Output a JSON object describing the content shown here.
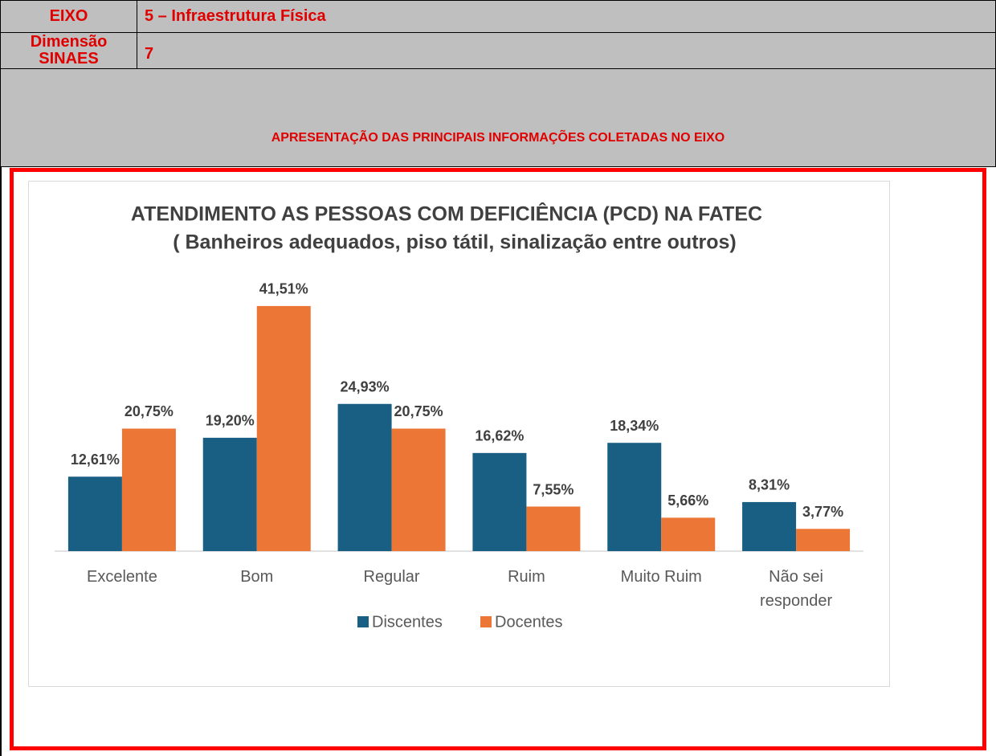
{
  "header": {
    "rows": [
      [
        "EIXO",
        "5 – Infraestrutura Física"
      ],
      [
        "Dimensão SINAES",
        "7"
      ]
    ],
    "section_title": "APRESENTAÇÃO DAS PRINCIPAIS INFORMAÇÕES COLETADAS NO EIXO"
  },
  "chart_data": {
    "type": "bar",
    "title": "ATENDIMENTO AS PESSOAS COM DEFICIÊNCIA (PCD) NA FATEC",
    "subtitle": "( Banheiros adequados, piso tátil, sinalização entre outros)",
    "categories": [
      "Excelente",
      "Bom",
      "Regular",
      "Ruim",
      "Muito Ruim",
      "Não sei responder"
    ],
    "series": [
      {
        "name": "Discentes",
        "color": "#195e83",
        "values": [
          12.61,
          19.2,
          24.93,
          16.62,
          18.34,
          8.31
        ],
        "value_labels": [
          "12,61%",
          "19,20%",
          "24,93%",
          "16,62%",
          "18,34%",
          "8,31%"
        ]
      },
      {
        "name": "Docentes",
        "color": "#ec7636",
        "values": [
          20.75,
          41.51,
          20.75,
          7.55,
          5.66,
          3.77
        ],
        "value_labels": [
          "20,75%",
          "41,51%",
          "20,75%",
          "7,55%",
          "5,66%",
          "3,77%"
        ]
      }
    ]
  }
}
